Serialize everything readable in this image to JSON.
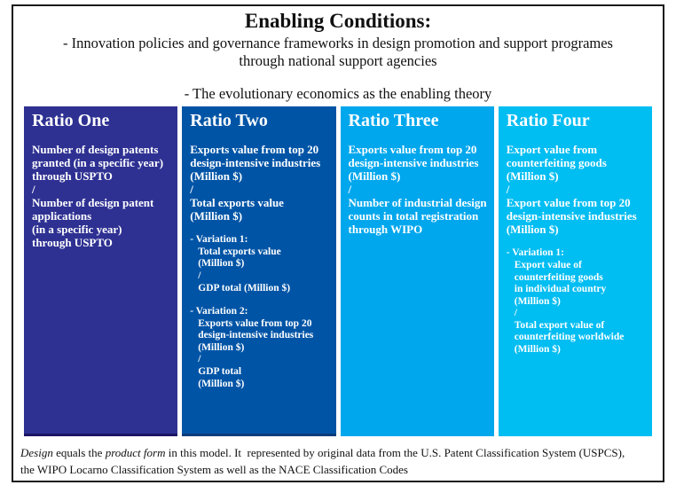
{
  "header": {
    "title": "Enabling Conditions:",
    "bullet1": "- Innovation policies and governance frameworks in design promotion and support programes\nthrough national support agencies",
    "bullet2": "- The evolutionary economics as the enabling theory"
  },
  "columns": [
    {
      "title": "Ratio One",
      "color": "#2E3192",
      "body": "Number of design patents\ngranted (in a specific year)\nthrough USPTO\n/\nNumber of design patent\napplications\n(in a specific year)\nthrough USPTO",
      "variations": []
    },
    {
      "title": "Ratio Two",
      "color": "#0054A6",
      "body": "Exports value from top 20\ndesign-intensive industries\n(Million $)\n/\nTotal exports value\n(Million $)",
      "variations": [
        {
          "label": "- Variation 1:",
          "body": "Total exports value\n(Million $)\n/\nGDP total (Million $)"
        },
        {
          "label": "- Variation 2:",
          "body": "Exports value from top 20\ndesign-intensive industries\n(Million $)\n/\nGDP total\n(Million $)"
        }
      ]
    },
    {
      "title": "Ratio Three",
      "color": "#00A7ED",
      "body": "Exports value from top 20\ndesign-intensive industries\n(Million $)\n/\nNumber of industrial design\ncounts in total registration\nthrough WIPO",
      "variations": []
    },
    {
      "title": "Ratio Four",
      "color": "#00BDF2",
      "body": "Export value from\ncounterfeiting goods\n(Million $)\n/\nExport value from top 20\ndesign-intensive industries\n(Million $)",
      "variations": [
        {
          "label": "- Variation 1:",
          "body": "Export value of\ncounterfeiting goods\nin individual country\n(Million $)\n/\nTotal export value of\ncounterfeiting worldwide\n(Million $)"
        }
      ]
    }
  ],
  "footer": {
    "design_italic": "Design",
    "middle": " equals the ",
    "product_form_italic": "product form",
    "rest": " in this model. It  represented by original data from the U.S. Patent Classification System (USPCS),\nthe WIPO Locarno Classification System as well as the NACE Classification Codes"
  },
  "palette": {
    "frame_border": "#1a1a1a",
    "ratio_one_bg": "#2E3192",
    "ratio_two_bg": "#0054A6",
    "ratio_three_bg": "#00A7ED",
    "ratio_four_bg": "#00BDF2",
    "text_on_columns": "#FFFFFF"
  }
}
